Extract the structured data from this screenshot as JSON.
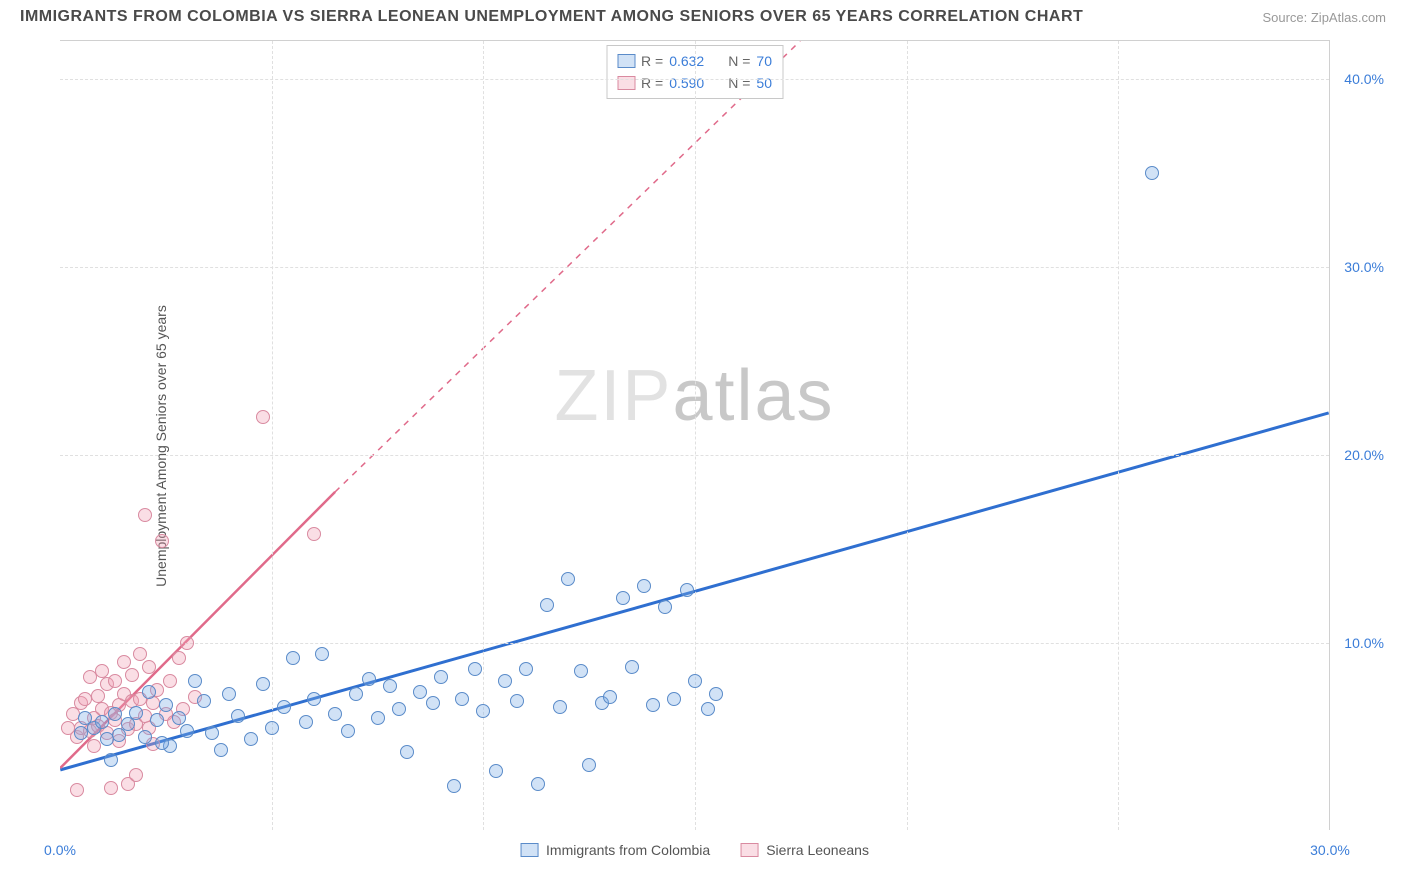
{
  "header": {
    "title": "IMMIGRANTS FROM COLOMBIA VS SIERRA LEONEAN UNEMPLOYMENT AMONG SENIORS OVER 65 YEARS CORRELATION CHART",
    "source": "Source: ZipAtlas.com"
  },
  "chart": {
    "type": "scatter",
    "y_label": "Unemployment Among Seniors over 65 years",
    "xlim": [
      0,
      30
    ],
    "ylim": [
      0,
      42
    ],
    "x_ticks": [
      {
        "v": 0,
        "l": "0.0%"
      },
      {
        "v": 30,
        "l": "30.0%"
      }
    ],
    "y_ticks": [
      {
        "v": 10,
        "l": "10.0%"
      },
      {
        "v": 20,
        "l": "20.0%"
      },
      {
        "v": 30,
        "l": "30.0%"
      },
      {
        "v": 40,
        "l": "40.0%"
      }
    ],
    "v_grid": [
      5,
      10,
      15,
      20,
      25
    ],
    "background_color": "#ffffff",
    "grid_color": "#e0e0e0",
    "watermark": "ZIPatlas",
    "legend_top": [
      {
        "swatch": "blue",
        "r_label": "R =",
        "r": "0.632",
        "n_label": "N =",
        "n": "70"
      },
      {
        "swatch": "pink",
        "r_label": "R =",
        "r": "0.590",
        "n_label": "N =",
        "n": "50"
      }
    ],
    "legend_bottom": [
      {
        "swatch": "blue",
        "label": "Immigrants from Colombia"
      },
      {
        "swatch": "pink",
        "label": "Sierra Leoneans"
      }
    ],
    "colors": {
      "blue_fill": "rgba(122,172,230,0.35)",
      "blue_stroke": "#5a8bc9",
      "pink_fill": "rgba(240,160,180,0.35)",
      "pink_stroke": "#d98aa0",
      "blue_line": "#2f6fd0",
      "pink_line": "#e06a8a",
      "tick_text": "#3b7dd8",
      "label_text": "#555555"
    },
    "series": {
      "blue": {
        "trend": {
          "x1": 0,
          "y1": 3.2,
          "x2": 30,
          "y2": 22.2,
          "dashed": false,
          "width": 3
        },
        "points": [
          [
            0.5,
            5.2
          ],
          [
            0.6,
            6.0
          ],
          [
            0.8,
            5.5
          ],
          [
            1.0,
            5.8
          ],
          [
            1.1,
            4.9
          ],
          [
            1.3,
            6.2
          ],
          [
            1.4,
            5.1
          ],
          [
            1.6,
            5.7
          ],
          [
            1.8,
            6.3
          ],
          [
            2.0,
            5.0
          ],
          [
            2.1,
            7.4
          ],
          [
            2.3,
            5.9
          ],
          [
            2.5,
            6.7
          ],
          [
            2.6,
            4.5
          ],
          [
            2.8,
            6.0
          ],
          [
            3.0,
            5.3
          ],
          [
            3.2,
            8.0
          ],
          [
            3.4,
            6.9
          ],
          [
            3.6,
            5.2
          ],
          [
            3.8,
            4.3
          ],
          [
            4.0,
            7.3
          ],
          [
            4.2,
            6.1
          ],
          [
            4.5,
            4.9
          ],
          [
            4.8,
            7.8
          ],
          [
            5.0,
            5.5
          ],
          [
            5.3,
            6.6
          ],
          [
            5.5,
            9.2
          ],
          [
            5.8,
            5.8
          ],
          [
            6.0,
            7.0
          ],
          [
            6.2,
            9.4
          ],
          [
            6.5,
            6.2
          ],
          [
            6.8,
            5.3
          ],
          [
            7.0,
            7.3
          ],
          [
            7.3,
            8.1
          ],
          [
            7.5,
            6.0
          ],
          [
            7.8,
            7.7
          ],
          [
            8.0,
            6.5
          ],
          [
            8.2,
            4.2
          ],
          [
            8.5,
            7.4
          ],
          [
            8.8,
            6.8
          ],
          [
            9.0,
            8.2
          ],
          [
            9.3,
            2.4
          ],
          [
            9.5,
            7.0
          ],
          [
            9.8,
            8.6
          ],
          [
            10.0,
            6.4
          ],
          [
            10.3,
            3.2
          ],
          [
            10.5,
            8.0
          ],
          [
            10.8,
            6.9
          ],
          [
            11.0,
            8.6
          ],
          [
            11.3,
            2.5
          ],
          [
            11.5,
            12.0
          ],
          [
            11.8,
            6.6
          ],
          [
            12.0,
            13.4
          ],
          [
            12.3,
            8.5
          ],
          [
            12.5,
            3.5
          ],
          [
            12.8,
            6.8
          ],
          [
            13.0,
            7.1
          ],
          [
            13.3,
            12.4
          ],
          [
            13.5,
            8.7
          ],
          [
            13.8,
            13.0
          ],
          [
            14.0,
            6.7
          ],
          [
            14.3,
            11.9
          ],
          [
            14.5,
            7.0
          ],
          [
            14.8,
            12.8
          ],
          [
            15.0,
            8.0
          ],
          [
            15.3,
            6.5
          ],
          [
            15.5,
            7.3
          ],
          [
            25.8,
            35.0
          ],
          [
            1.2,
            3.8
          ],
          [
            2.4,
            4.7
          ]
        ]
      },
      "pink": {
        "trend_solid": {
          "x1": 0,
          "y1": 3.3,
          "x2": 6.5,
          "y2": 18.0,
          "dashed": false,
          "width": 2.5
        },
        "trend_dashed": {
          "x1": 6.5,
          "y1": 18.0,
          "x2": 17.5,
          "y2": 42.0,
          "dashed": true,
          "width": 1.5
        },
        "points": [
          [
            0.2,
            5.5
          ],
          [
            0.3,
            6.2
          ],
          [
            0.4,
            5.0
          ],
          [
            0.5,
            6.8
          ],
          [
            0.5,
            5.5
          ],
          [
            0.6,
            7.0
          ],
          [
            0.7,
            5.3
          ],
          [
            0.7,
            8.2
          ],
          [
            0.8,
            6.0
          ],
          [
            0.8,
            4.5
          ],
          [
            0.9,
            7.2
          ],
          [
            0.9,
            5.6
          ],
          [
            1.0,
            6.5
          ],
          [
            1.0,
            8.5
          ],
          [
            1.1,
            5.2
          ],
          [
            1.1,
            7.8
          ],
          [
            1.2,
            6.3
          ],
          [
            1.2,
            2.3
          ],
          [
            1.3,
            5.9
          ],
          [
            1.3,
            8.0
          ],
          [
            1.4,
            6.7
          ],
          [
            1.4,
            4.8
          ],
          [
            1.5,
            7.3
          ],
          [
            1.5,
            9.0
          ],
          [
            1.6,
            5.4
          ],
          [
            1.6,
            2.5
          ],
          [
            1.7,
            6.9
          ],
          [
            1.7,
            8.3
          ],
          [
            1.8,
            5.7
          ],
          [
            1.8,
            3.0
          ],
          [
            1.9,
            7.0
          ],
          [
            1.9,
            9.4
          ],
          [
            2.0,
            6.1
          ],
          [
            2.0,
            16.8
          ],
          [
            2.1,
            5.5
          ],
          [
            2.1,
            8.7
          ],
          [
            2.2,
            6.8
          ],
          [
            2.2,
            4.6
          ],
          [
            2.3,
            7.5
          ],
          [
            2.4,
            15.4
          ],
          [
            2.5,
            6.2
          ],
          [
            2.6,
            8.0
          ],
          [
            2.7,
            5.8
          ],
          [
            2.8,
            9.2
          ],
          [
            2.9,
            6.5
          ],
          [
            3.0,
            10.0
          ],
          [
            3.2,
            7.1
          ],
          [
            4.8,
            22.0
          ],
          [
            6.0,
            15.8
          ],
          [
            0.4,
            2.2
          ]
        ]
      }
    }
  }
}
